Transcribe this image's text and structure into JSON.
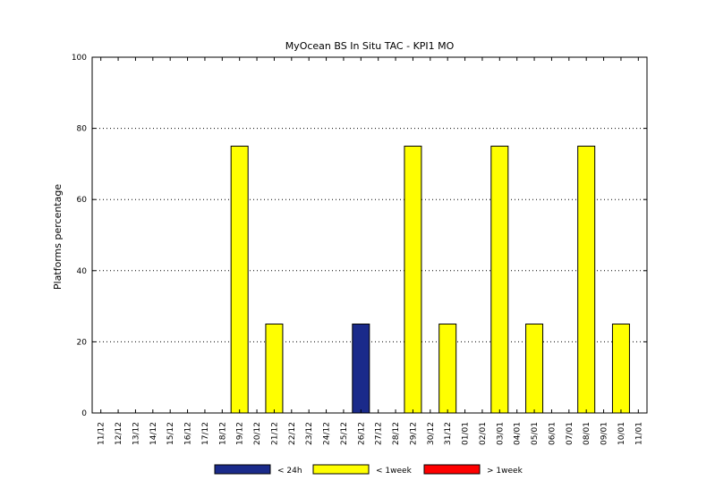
{
  "chart_data": {
    "type": "bar",
    "title": "MyOcean  BS In Situ TAC - KPI1  MO",
    "xlabel": "",
    "ylabel": "Platforms percentage",
    "ylim": [
      0,
      100
    ],
    "yticks": [
      0,
      20,
      40,
      60,
      80,
      100
    ],
    "grid": true,
    "legend_placement": "bottom",
    "categories": [
      "11/12",
      "12/12",
      "13/12",
      "14/12",
      "15/12",
      "16/12",
      "17/12",
      "18/12",
      "19/12",
      "20/12",
      "21/12",
      "22/12",
      "23/12",
      "24/12",
      "25/12",
      "26/12",
      "27/12",
      "28/12",
      "29/12",
      "30/12",
      "31/12",
      "01/01",
      "02/01",
      "03/01",
      "04/01",
      "05/01",
      "06/01",
      "07/01",
      "08/01",
      "09/01",
      "10/01",
      "11/01"
    ],
    "series": [
      {
        "name": "< 24h",
        "color": "#1a2a8a",
        "values": [
          0,
          0,
          0,
          0,
          0,
          0,
          0,
          0,
          0,
          0,
          0,
          0,
          0,
          0,
          0,
          25,
          0,
          0,
          0,
          0,
          0,
          0,
          0,
          0,
          0,
          0,
          0,
          0,
          0,
          0,
          0,
          0
        ]
      },
      {
        "name": "< 1week",
        "color": "#ffff00",
        "values": [
          0,
          0,
          0,
          0,
          0,
          0,
          0,
          0,
          75,
          0,
          25,
          0,
          0,
          0,
          0,
          0,
          0,
          0,
          75,
          0,
          25,
          0,
          0,
          75,
          0,
          25,
          0,
          0,
          75,
          0,
          25,
          0
        ]
      },
      {
        "name": "> 1week",
        "color": "#ff0000",
        "values": [
          0,
          0,
          0,
          0,
          0,
          0,
          0,
          0,
          0,
          0,
          0,
          0,
          0,
          0,
          0,
          0,
          0,
          0,
          0,
          0,
          0,
          0,
          0,
          0,
          0,
          0,
          0,
          0,
          0,
          0,
          0,
          0
        ]
      }
    ]
  }
}
